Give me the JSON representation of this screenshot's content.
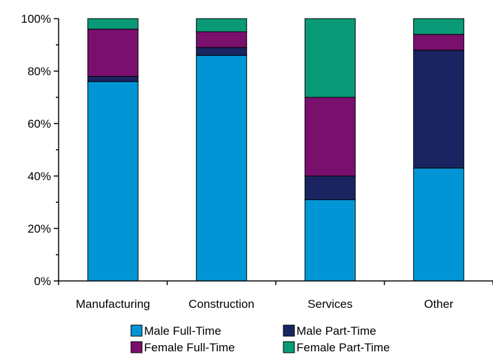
{
  "chart_data": {
    "type": "bar",
    "stacked": true,
    "categories": [
      "Manufacturing",
      "Construction",
      "Services",
      "Other"
    ],
    "series": [
      {
        "name": "Male Full-Time",
        "color": "#0096d6",
        "values": [
          76,
          86,
          31,
          43
        ]
      },
      {
        "name": "Male Part-Time",
        "color": "#1a2461",
        "values": [
          2,
          3,
          9,
          45
        ]
      },
      {
        "name": "Female Full-Time",
        "color": "#7a0f6e",
        "values": [
          18,
          6,
          30,
          6
        ]
      },
      {
        "name": "Female Part-Time",
        "color": "#0a9a78",
        "values": [
          4,
          5,
          30,
          6
        ]
      }
    ],
    "ylim": [
      0,
      100
    ],
    "yticks": [
      "0%",
      "20%",
      "40%",
      "60%",
      "80%",
      "100%"
    ],
    "title": "",
    "xlabel": "",
    "ylabel": "",
    "legend_position": "bottom",
    "grid": false
  }
}
